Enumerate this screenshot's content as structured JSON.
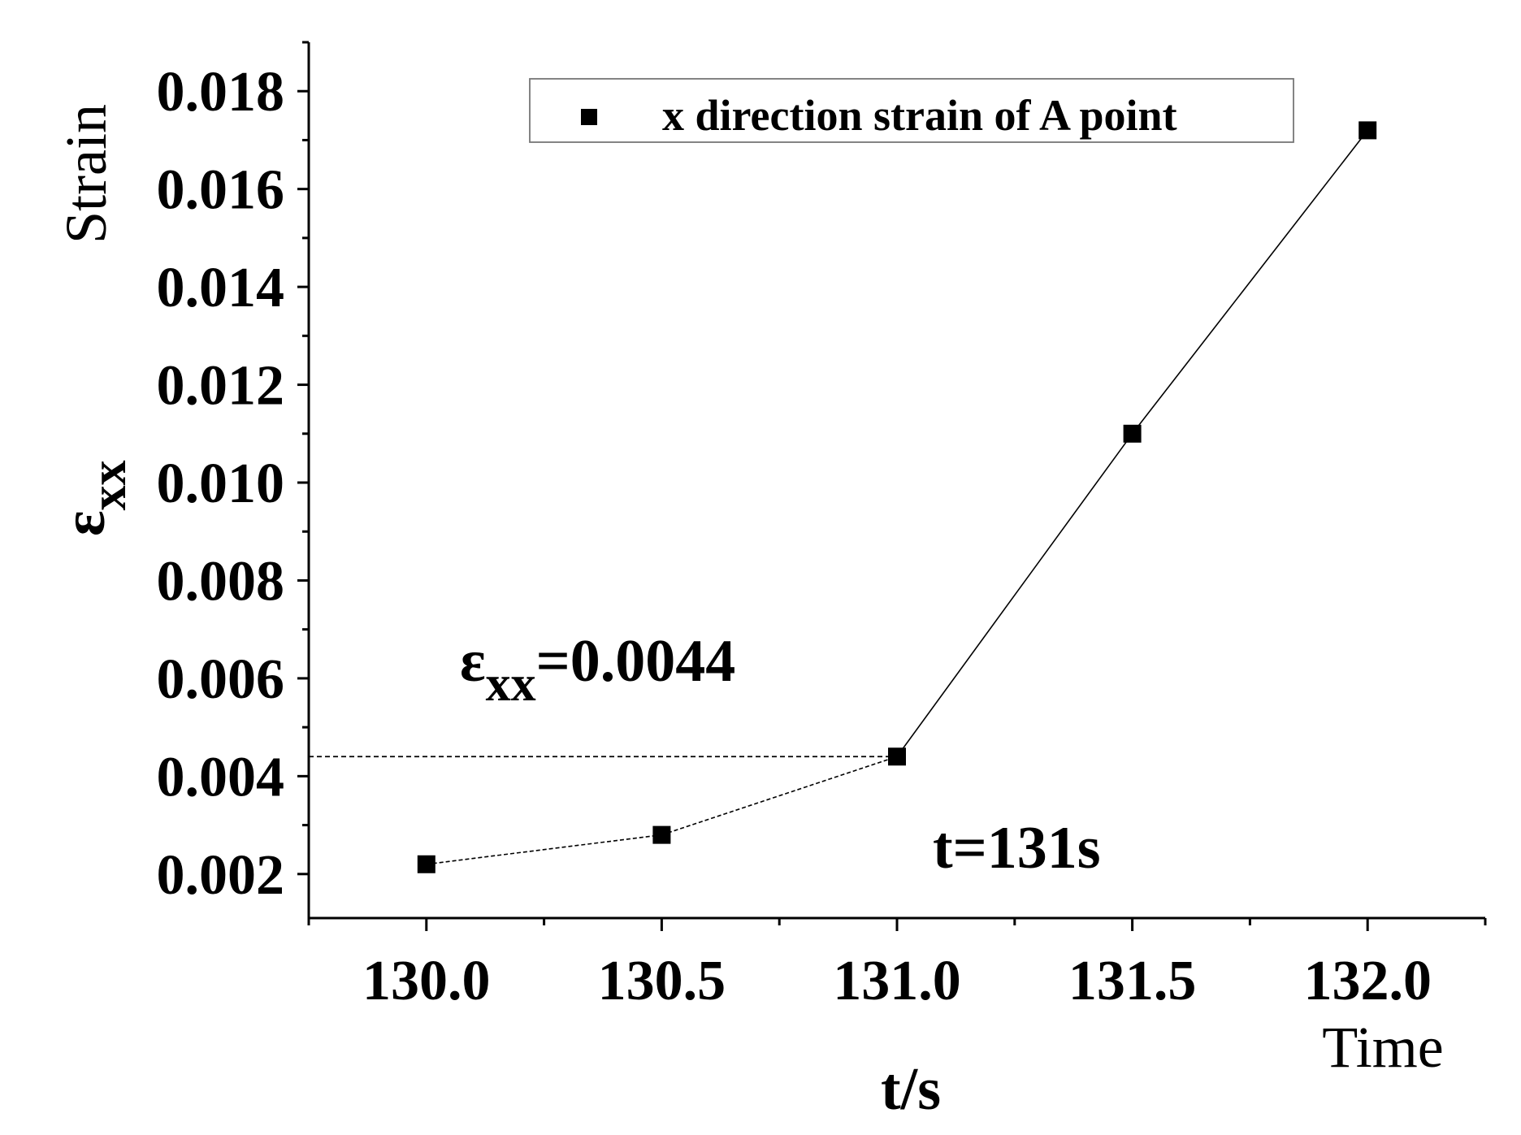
{
  "chart_data": {
    "type": "line",
    "x": [
      130.0,
      130.5,
      131.0,
      131.5,
      132.0
    ],
    "series": [
      {
        "name": "x direction strain of A point",
        "values": [
          0.0022,
          0.0028,
          0.0044,
          0.011,
          0.0172
        ]
      }
    ],
    "xlabel": "t/s",
    "xlabel_secondary": "Time",
    "ylabel": "εxx",
    "ylabel_symbol": "ε",
    "ylabel_subscript": "xx",
    "ylabel_secondary": "Strain",
    "xlim": [
      129.75,
      132.25
    ],
    "ylim": [
      0.0011,
      0.019
    ],
    "x_ticks": [
      "130.0",
      "130.5",
      "131.0",
      "131.5",
      "132.0"
    ],
    "x_tick_values": [
      130.0,
      130.5,
      131.0,
      131.5,
      132.0
    ],
    "y_ticks": [
      "0.002",
      "0.004",
      "0.006",
      "0.008",
      "0.010",
      "0.012",
      "0.014",
      "0.016",
      "0.018"
    ],
    "y_tick_values": [
      0.002,
      0.004,
      0.006,
      0.008,
      0.01,
      0.012,
      0.014,
      0.016,
      0.018
    ],
    "legend_position": "top-right",
    "grid": false,
    "annotations": {
      "strain_value_symbol": "ε",
      "strain_value_subscript": "xx",
      "strain_value_text": "=0.0044",
      "time_text": "t=131s",
      "guide_value": 0.0044
    }
  }
}
